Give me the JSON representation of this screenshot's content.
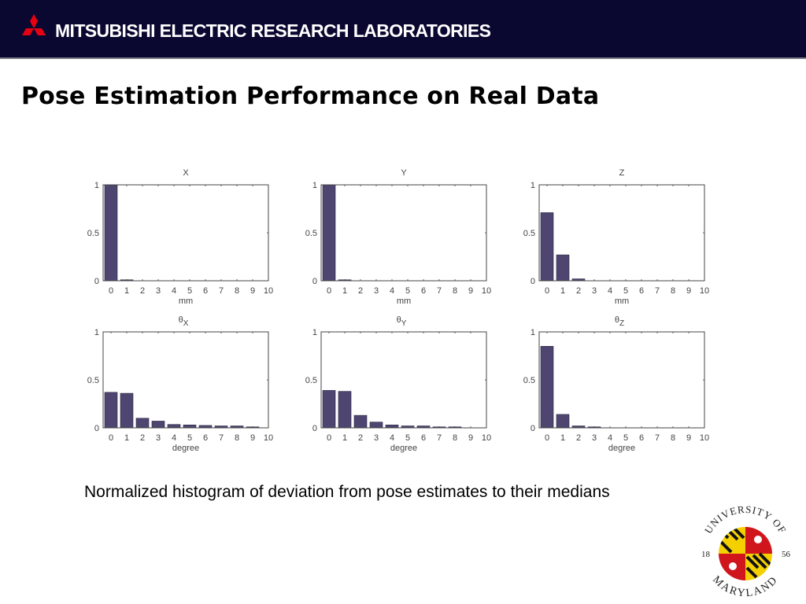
{
  "header": {
    "organization": "MITSUBISHI ELECTRIC RESEARCH LABORATORIES",
    "logo_icon": "mitsubishi-three-diamonds-icon",
    "background_color": "#0a0730",
    "logo_color": "#e60012"
  },
  "slide": {
    "title": "Pose Estimation Performance on Real Data",
    "caption": "Normalized histogram of deviation from pose estimates to their medians"
  },
  "university_logo": {
    "top_text": "UNIVERSITY OF",
    "bottom_text": "MARYLAND",
    "year_left": "18",
    "year_right": "56"
  },
  "chart_data": [
    {
      "type": "bar",
      "title": "X",
      "xlabel": "mm",
      "ylabel": "",
      "categories": [
        "0",
        "1",
        "2",
        "3",
        "4",
        "5",
        "6",
        "7",
        "8",
        "9",
        "10"
      ],
      "values": [
        1.0,
        0.01,
        0,
        0,
        0,
        0,
        0,
        0,
        0,
        0
      ],
      "xlim": [
        -0.5,
        10
      ],
      "ylim": [
        0,
        1
      ],
      "yticks": [
        "0",
        "0.5",
        "1"
      ],
      "grid": false,
      "bar_color": "#4e4670"
    },
    {
      "type": "bar",
      "title": "Y",
      "xlabel": "mm",
      "ylabel": "",
      "categories": [
        "0",
        "1",
        "2",
        "3",
        "4",
        "5",
        "6",
        "7",
        "8",
        "9",
        "10"
      ],
      "values": [
        1.0,
        0.01,
        0,
        0,
        0,
        0,
        0,
        0,
        0,
        0
      ],
      "xlim": [
        -0.5,
        10
      ],
      "ylim": [
        0,
        1
      ],
      "yticks": [
        "0",
        "0.5",
        "1"
      ],
      "grid": false,
      "bar_color": "#4e4670"
    },
    {
      "type": "bar",
      "title": "Z",
      "xlabel": "mm",
      "ylabel": "",
      "categories": [
        "0",
        "1",
        "2",
        "3",
        "4",
        "5",
        "6",
        "7",
        "8",
        "9",
        "10"
      ],
      "values": [
        0.71,
        0.27,
        0.02,
        0,
        0,
        0,
        0,
        0,
        0,
        0
      ],
      "xlim": [
        -0.5,
        10
      ],
      "ylim": [
        0,
        1
      ],
      "yticks": [
        "0",
        "0.5",
        "1"
      ],
      "grid": false,
      "bar_color": "#4e4670"
    },
    {
      "type": "bar",
      "title": "θ",
      "title_subscript": "X",
      "xlabel": "degree",
      "ylabel": "",
      "categories": [
        "0",
        "1",
        "2",
        "3",
        "4",
        "5",
        "6",
        "7",
        "8",
        "9",
        "10"
      ],
      "values": [
        0.37,
        0.36,
        0.1,
        0.07,
        0.035,
        0.03,
        0.025,
        0.02,
        0.02,
        0.01
      ],
      "xlim": [
        -0.5,
        10
      ],
      "ylim": [
        0,
        1
      ],
      "yticks": [
        "0",
        "0.5",
        "1"
      ],
      "grid": false,
      "bar_color": "#4e4670"
    },
    {
      "type": "bar",
      "title": "θ",
      "title_subscript": "Y",
      "xlabel": "degree",
      "ylabel": "",
      "categories": [
        "0",
        "1",
        "2",
        "3",
        "4",
        "5",
        "6",
        "7",
        "8",
        "9",
        "10"
      ],
      "values": [
        0.39,
        0.38,
        0.13,
        0.06,
        0.03,
        0.02,
        0.02,
        0.01,
        0.01,
        0
      ],
      "xlim": [
        -0.5,
        10
      ],
      "ylim": [
        0,
        1
      ],
      "yticks": [
        "0",
        "0.5",
        "1"
      ],
      "grid": false,
      "bar_color": "#4e4670"
    },
    {
      "type": "bar",
      "title": "θ",
      "title_subscript": "Z",
      "xlabel": "degree",
      "ylabel": "",
      "categories": [
        "0",
        "1",
        "2",
        "3",
        "4",
        "5",
        "6",
        "7",
        "8",
        "9",
        "10"
      ],
      "values": [
        0.85,
        0.14,
        0.02,
        0.01,
        0,
        0,
        0,
        0,
        0,
        0
      ],
      "xlim": [
        -0.5,
        10
      ],
      "ylim": [
        0,
        1
      ],
      "yticks": [
        "0",
        "0.5",
        "1"
      ],
      "grid": false,
      "bar_color": "#4e4670"
    }
  ]
}
